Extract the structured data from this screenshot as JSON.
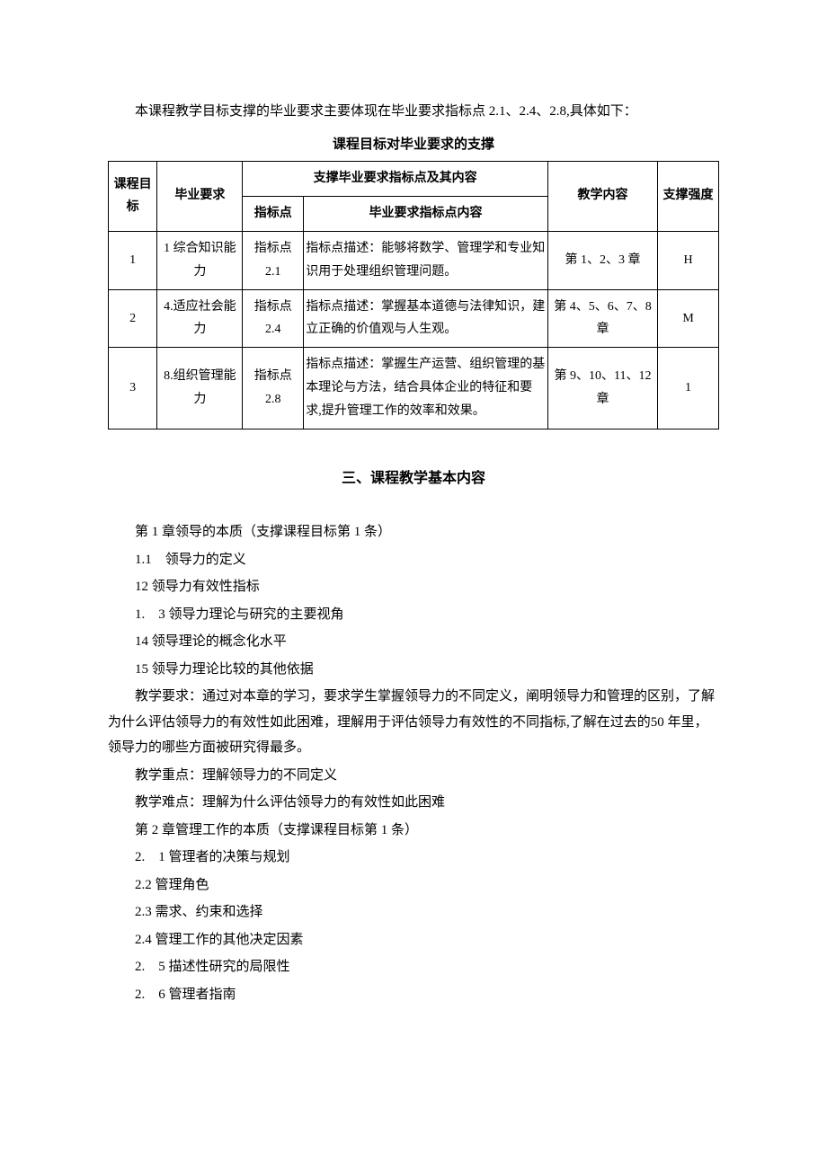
{
  "intro": "本课程教学目标支撑的毕业要求主要体现在毕业要求指标点 2.1、2.4、2.8,具体如下：",
  "table": {
    "title": "课程目标对毕业要求的支撑",
    "headers": {
      "h1": "课程目标",
      "h2": "毕业要求",
      "h3": "支撑毕业要求指标点及其内容",
      "h3a": "指标点",
      "h3b": "毕业要求指标点内容",
      "h4": "教学内容",
      "h5": "支撑强度"
    },
    "rows": [
      {
        "goal": "1",
        "req": "1 综合知识能力",
        "point": "指标点2.1",
        "desc": "指标点描述：能够将数学、管理学和专业知识用于处理组织管理问题。",
        "content": "第 1、2、3 章",
        "strength": "H"
      },
      {
        "goal": "2",
        "req": "4.适应社会能力",
        "point": "指标点2.4",
        "desc": "指标点描述：掌握基本道德与法律知识，建立正确的价值观与人生观。",
        "content": "第 4、5、6、7、8 章",
        "strength": "M"
      },
      {
        "goal": "3",
        "req": "8.组织管理能力",
        "point": "指标点2.8",
        "desc": "指标点描述：掌握生产运营、组织管理的基本理论与方法，结合具体企业的特征和要求,提升管理工作的效率和效果。",
        "content": "第 9、10、11、12 章",
        "strength": "1"
      }
    ]
  },
  "section_heading": "三、课程教学基本内容",
  "paragraphs": [
    "第 1 章领导的本质（支撑课程目标第 1 条）",
    "1.1　领导力的定义",
    "12 领导力有效性指标",
    "1.　3 领导力理论与研究的主要视角",
    "14 领导理论的概念化水平",
    "15 领导力理论比较的其他依据",
    "教学要求：通过对本章的学习，要求学生掌握领导力的不同定义，阐明领导力和管理的区别，了解为什么评估领导力的有效性如此困难，理解用于评估领导力有效性的不同指标,了解在过去的50 年里，领导力的哪些方面被研究得最多。",
    "教学重点：理解领导力的不同定义",
    "教学难点：理解为什么评估领导力的有效性如此困难",
    "第 2 章管理工作的本质（支撑课程目标第 1 条）",
    "2.　1 管理者的决策与规划",
    "2.2 管理角色",
    "2.3 需求、约束和选择",
    "2.4 管理工作的其他决定因素",
    "2.　5 描述性研究的局限性",
    "2.　6 管理者指南"
  ]
}
